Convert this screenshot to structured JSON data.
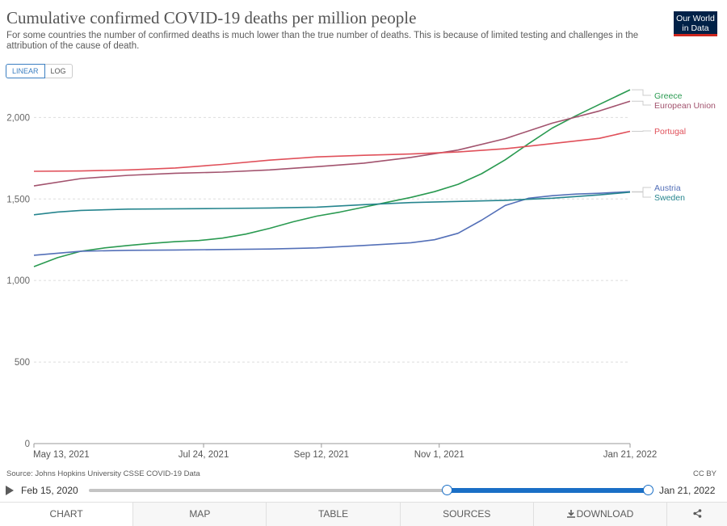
{
  "title": "Cumulative confirmed COVID-19 deaths per million people",
  "subtitle": "For some countries the number of confirmed deaths is much lower than the true number of deaths. This is because of limited testing and challenges in the attribution of the cause of death.",
  "logo": "Our World in Data",
  "scale_toggle": {
    "linear": "LINEAR",
    "log": "LOG",
    "selected": "LINEAR"
  },
  "source": "Source: Johns Hopkins University CSSE COVID-19 Data",
  "license": "CC BY",
  "timeline": {
    "start": "Feb 15, 2020",
    "end": "Jan 21, 2022",
    "selected_start": "May 13, 2021",
    "selected_end": "Jan 21, 2022"
  },
  "tabs": [
    {
      "label": "CHART",
      "icon": ""
    },
    {
      "label": "MAP",
      "icon": ""
    },
    {
      "label": "TABLE",
      "icon": ""
    },
    {
      "label": "SOURCES",
      "icon": ""
    },
    {
      "label": "DOWNLOAD",
      "icon": "download-icon"
    },
    {
      "label": "",
      "icon": "share-icon"
    }
  ],
  "chart_data": {
    "type": "line",
    "title": "Cumulative confirmed COVID-19 deaths per million people",
    "xlabel": "",
    "ylabel": "",
    "ylim": [
      0,
      2200
    ],
    "y_ticks": [
      0,
      500,
      1000,
      1500,
      2000
    ],
    "x_tick_labels": [
      {
        "label": "May 13, 2021",
        "day": 0
      },
      {
        "label": "Jul 24, 2021",
        "day": 72
      },
      {
        "label": "Sep 12, 2021",
        "day": 122
      },
      {
        "label": "Nov 1, 2021",
        "day": 172
      },
      {
        "label": "Jan 21, 2022",
        "day": 253
      }
    ],
    "grid": true,
    "legend": "right, labels at line ends",
    "series": [
      {
        "name": "Greece",
        "color": "#2a9a51",
        "x": [
          0,
          10,
          20,
          30,
          40,
          50,
          60,
          70,
          80,
          90,
          100,
          110,
          120,
          130,
          140,
          150,
          160,
          170,
          180,
          190,
          200,
          210,
          220,
          230,
          240,
          253
        ],
        "values": [
          1085,
          1140,
          1180,
          1200,
          1215,
          1228,
          1238,
          1245,
          1260,
          1285,
          1320,
          1360,
          1395,
          1420,
          1450,
          1480,
          1510,
          1545,
          1590,
          1655,
          1740,
          1840,
          1935,
          2010,
          2080,
          2170
        ]
      },
      {
        "name": "European Union",
        "color": "#a2536e",
        "x": [
          0,
          20,
          40,
          60,
          80,
          100,
          120,
          140,
          160,
          180,
          200,
          220,
          240,
          253
        ],
        "values": [
          1580,
          1625,
          1645,
          1658,
          1665,
          1678,
          1698,
          1720,
          1755,
          1800,
          1870,
          1965,
          2040,
          2100
        ]
      },
      {
        "name": "Portugal",
        "color": "#e0505a",
        "x": [
          0,
          20,
          40,
          60,
          80,
          100,
          120,
          140,
          160,
          180,
          200,
          220,
          240,
          253
        ],
        "values": [
          1670,
          1672,
          1678,
          1690,
          1712,
          1738,
          1758,
          1768,
          1776,
          1788,
          1808,
          1840,
          1872,
          1915
        ]
      },
      {
        "name": "Austria",
        "color": "#5470b8",
        "x": [
          0,
          20,
          40,
          60,
          80,
          100,
          120,
          140,
          160,
          170,
          180,
          190,
          200,
          210,
          220,
          230,
          240,
          253
        ],
        "values": [
          1155,
          1180,
          1185,
          1187,
          1190,
          1193,
          1200,
          1215,
          1232,
          1250,
          1290,
          1370,
          1460,
          1505,
          1520,
          1530,
          1535,
          1545
        ]
      },
      {
        "name": "Sweden",
        "color": "#26858e",
        "x": [
          0,
          10,
          20,
          40,
          60,
          80,
          100,
          120,
          140,
          160,
          180,
          200,
          220,
          240,
          253
        ],
        "values": [
          1403,
          1420,
          1430,
          1438,
          1440,
          1442,
          1445,
          1450,
          1465,
          1478,
          1485,
          1492,
          1505,
          1525,
          1542
        ]
      }
    ]
  }
}
